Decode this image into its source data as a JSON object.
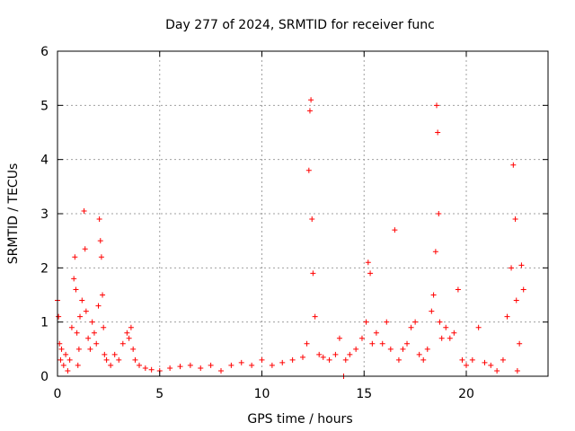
{
  "chart_data": {
    "type": "scatter",
    "title": "Day 277 of 2024, SRMTID for receiver func",
    "xlabel": "GPS time / hours",
    "ylabel": "SRMTID / TECUs",
    "xlim": [
      0,
      24
    ],
    "ylim": [
      0,
      6
    ],
    "xticks": [
      0,
      5,
      10,
      15,
      20
    ],
    "yticks": [
      0,
      1,
      2,
      3,
      4,
      5,
      6
    ],
    "grid": true,
    "marker": "+",
    "color": "#ff0000",
    "series": [
      {
        "name": "SRMTID",
        "x": [
          0.0,
          0.05,
          0.1,
          0.15,
          0.2,
          0.3,
          0.4,
          0.5,
          0.6,
          0.7,
          0.8,
          0.85,
          0.9,
          0.95,
          1.0,
          1.05,
          1.1,
          1.2,
          1.3,
          1.35,
          1.4,
          1.5,
          1.6,
          1.7,
          1.8,
          1.9,
          2.0,
          2.05,
          2.1,
          2.15,
          2.2,
          2.25,
          2.3,
          2.4,
          2.6,
          2.8,
          3.0,
          3.2,
          3.4,
          3.5,
          3.6,
          3.7,
          3.8,
          4.0,
          4.3,
          4.6,
          5.0,
          5.5,
          6.0,
          6.5,
          7.0,
          7.5,
          8.0,
          8.5,
          9.0,
          9.5,
          10.0,
          10.5,
          11.0,
          11.5,
          12.0,
          12.2,
          12.3,
          12.35,
          12.4,
          12.45,
          12.5,
          12.6,
          12.8,
          13.0,
          13.3,
          13.6,
          13.8,
          14.0,
          14.1,
          14.3,
          14.6,
          14.9,
          15.1,
          15.2,
          15.3,
          15.4,
          15.6,
          15.9,
          16.1,
          16.3,
          16.5,
          16.7,
          16.9,
          17.1,
          17.3,
          17.5,
          17.7,
          17.9,
          18.1,
          18.3,
          18.4,
          18.5,
          18.55,
          18.6,
          18.65,
          18.7,
          18.8,
          19.0,
          19.2,
          19.4,
          19.6,
          19.8,
          20.0,
          20.3,
          20.6,
          20.9,
          21.2,
          21.5,
          21.8,
          22.0,
          22.2,
          22.3,
          22.4,
          22.45,
          22.5,
          22.6,
          22.7,
          22.8
        ],
        "y": [
          1.4,
          1.1,
          0.6,
          0.3,
          0.5,
          0.2,
          0.4,
          0.1,
          0.3,
          0.9,
          1.8,
          2.2,
          1.6,
          0.8,
          0.2,
          0.5,
          1.1,
          1.4,
          3.05,
          2.35,
          1.2,
          0.7,
          0.5,
          1.0,
          0.8,
          0.6,
          1.3,
          2.9,
          2.5,
          2.2,
          1.5,
          0.9,
          0.4,
          0.3,
          0.2,
          0.4,
          0.3,
          0.6,
          0.8,
          0.7,
          0.9,
          0.5,
          0.3,
          0.2,
          0.15,
          0.12,
          0.1,
          0.15,
          0.18,
          0.2,
          0.15,
          0.2,
          0.1,
          0.2,
          0.25,
          0.2,
          0.3,
          0.2,
          0.25,
          0.3,
          0.35,
          0.6,
          3.8,
          4.9,
          5.1,
          2.9,
          1.9,
          1.1,
          0.4,
          0.35,
          0.3,
          0.4,
          0.7,
          0.0,
          0.3,
          0.4,
          0.5,
          0.7,
          1.0,
          2.1,
          1.9,
          0.6,
          0.8,
          0.6,
          1.0,
          0.5,
          2.7,
          0.3,
          0.5,
          0.6,
          0.9,
          1.0,
          0.4,
          0.3,
          0.5,
          1.2,
          1.5,
          2.3,
          5.0,
          4.5,
          3.0,
          1.0,
          0.7,
          0.9,
          0.7,
          0.8,
          1.6,
          0.3,
          0.2,
          0.3,
          0.9,
          0.25,
          0.2,
          0.1,
          0.3,
          1.1,
          2.0,
          3.9,
          2.9,
          1.4,
          0.1,
          0.6,
          2.05,
          1.6
        ]
      }
    ]
  }
}
